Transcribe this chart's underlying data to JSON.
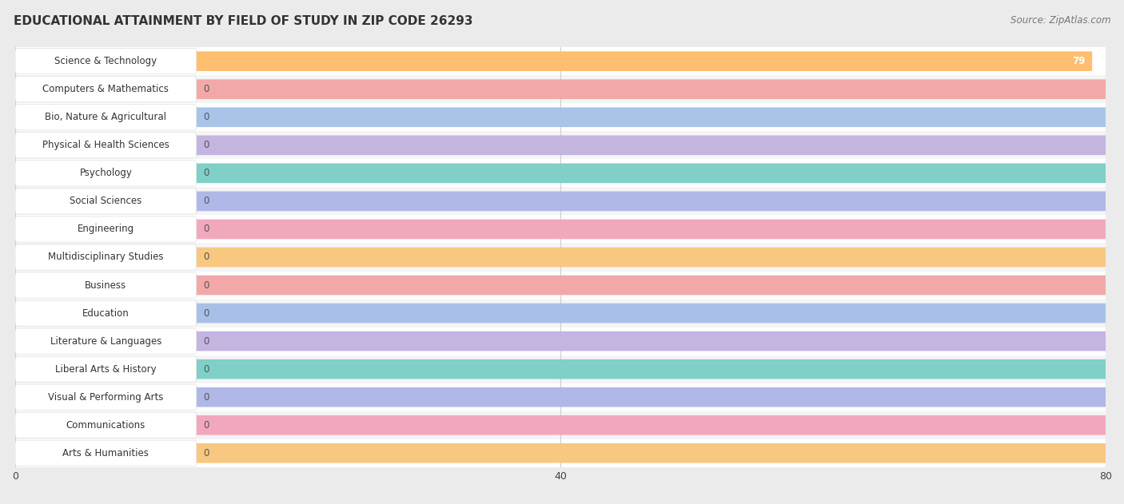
{
  "title": "EDUCATIONAL ATTAINMENT BY FIELD OF STUDY IN ZIP CODE 26293",
  "source": "Source: ZipAtlas.com",
  "categories": [
    "Science & Technology",
    "Computers & Mathematics",
    "Bio, Nature & Agricultural",
    "Physical & Health Sciences",
    "Psychology",
    "Social Sciences",
    "Engineering",
    "Multidisciplinary Studies",
    "Business",
    "Education",
    "Literature & Languages",
    "Liberal Arts & History",
    "Visual & Performing Arts",
    "Communications",
    "Arts & Humanities"
  ],
  "values": [
    79,
    0,
    0,
    0,
    0,
    0,
    0,
    0,
    0,
    0,
    0,
    0,
    0,
    0,
    0
  ],
  "bar_colors": [
    "#FFBE6F",
    "#F2A8A8",
    "#A8C4E8",
    "#C4B4E0",
    "#80CFC8",
    "#B0B8E8",
    "#F2A8BC",
    "#F8C880",
    "#F2A8A8",
    "#A8C0E8",
    "#C4B4E0",
    "#80CFC8",
    "#B0B8E8",
    "#F2A8BC",
    "#F8C880"
  ],
  "row_colors": [
    "#ffffff",
    "#f5f5f5"
  ],
  "grid_color": "#cccccc",
  "xlim": [
    0,
    80
  ],
  "xticks": [
    0,
    40,
    80
  ],
  "background_color": "#ebebeb",
  "title_fontsize": 11,
  "source_fontsize": 8.5,
  "bar_height": 0.68,
  "value_label_color": "#555555",
  "label_fontsize": 8.5
}
